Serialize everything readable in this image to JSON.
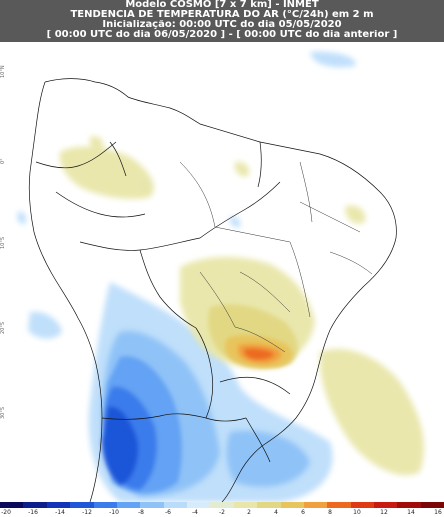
{
  "header": {
    "line1": "Modelo COSMO [7 x 7 km] - INMET",
    "line2": "TENDÊNCIA DE TEMPERATURA DO AR (°C/24h) em 2 m",
    "line3": "Inicialização: 00:00 UTC do dia 05/05/2020",
    "line4": "[ 00:00 UTC do dia 06/05/2020 ] - [ 00:00 UTC do dia anterior ]"
  },
  "colorbar": {
    "colors": [
      "#0a0a5a",
      "#0d1f8a",
      "#1234b8",
      "#1f57d8",
      "#3b7cec",
      "#63a2f4",
      "#8fc2f7",
      "#b9dcfa",
      "#d6ecfb",
      "#e3ecd0",
      "#e8e6a8",
      "#e2d884",
      "#e8c45c",
      "#f0a03c",
      "#ec6a20",
      "#e03a14",
      "#c81a10",
      "#a00c0a",
      "#7a0606"
    ],
    "ticks": [
      "-20",
      "-16",
      "-14",
      "-12",
      "-10",
      "-8",
      "-6",
      "-4",
      "-2",
      "2",
      "4",
      "6",
      "8",
      "10",
      "12",
      "14",
      "16"
    ]
  },
  "lat_labels": [
    "10°N",
    "0°",
    "10°S",
    "20°S",
    "30°S"
  ]
}
